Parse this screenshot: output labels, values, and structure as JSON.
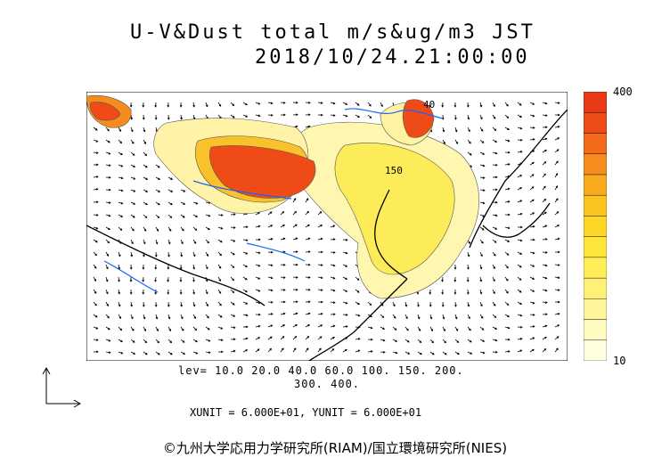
{
  "title": {
    "line1": "U-V&Dust total m/s&ug/m3 JST",
    "line2": "2018/10/24.21:00:00"
  },
  "colorbar": {
    "max_label": "400",
    "min_label": "10",
    "colors": [
      "#ffffe0",
      "#fffac0",
      "#fff59a",
      "#fff176",
      "#ffee58",
      "#fde53a",
      "#fcd727",
      "#fbc41e",
      "#f9a91c",
      "#f68c1b",
      "#f26b1a",
      "#ee4b17",
      "#e83a14"
    ]
  },
  "contour_labels": {
    "label_a": "150",
    "label_b": "40"
  },
  "levels": {
    "line1": "lev= 10.0 20.0 40.0 60.0 100. 150. 200.",
    "line2": "300. 400."
  },
  "units": "XUNIT = 6.000E+01, YUNIT = 6.000E+01",
  "credit": "©九州大学応用力学研究所(RIAM)/国立環境研究所(NIES)"
}
